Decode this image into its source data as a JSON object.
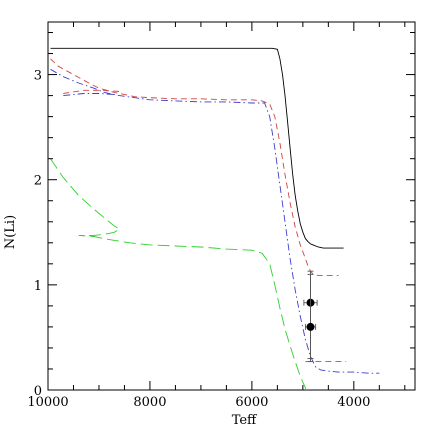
{
  "chart_data": {
    "type": "line",
    "title": "",
    "xlabel": "Teff",
    "ylabel": "N(Li)",
    "x_reversed": true,
    "xlim": [
      10000,
      2800
    ],
    "ylim": [
      0,
      3.5
    ],
    "x_major_ticks": [
      10000,
      8000,
      6000,
      4000
    ],
    "x_tick_labels": [
      "10000",
      "8000",
      "6000",
      "4000"
    ],
    "y_major_ticks": [
      0,
      1,
      2,
      3
    ],
    "y_tick_labels": [
      "0",
      "1",
      "2",
      "3"
    ],
    "grid": false,
    "legend": "none",
    "series": [
      {
        "style": "solid",
        "color": "#000000",
        "points": [
          [
            9950,
            3.25
          ],
          [
            9000,
            3.25
          ],
          [
            8000,
            3.25
          ],
          [
            7000,
            3.25
          ],
          [
            6000,
            3.25
          ],
          [
            5600,
            3.25
          ],
          [
            5500,
            3.24
          ],
          [
            5450,
            3.15
          ],
          [
            5400,
            3.0
          ],
          [
            5350,
            2.8
          ],
          [
            5300,
            2.55
          ],
          [
            5250,
            2.3
          ],
          [
            5200,
            2.05
          ],
          [
            5150,
            1.85
          ],
          [
            5100,
            1.7
          ],
          [
            5050,
            1.58
          ],
          [
            5000,
            1.5
          ],
          [
            4950,
            1.44
          ],
          [
            4900,
            1.41
          ],
          [
            4850,
            1.39
          ],
          [
            4800,
            1.38
          ],
          [
            4700,
            1.36
          ],
          [
            4600,
            1.35
          ],
          [
            4500,
            1.35
          ],
          [
            4400,
            1.35
          ],
          [
            4200,
            1.35
          ]
        ]
      },
      {
        "style": "dashed",
        "color": "#d0443f",
        "points": [
          [
            9950,
            3.15
          ],
          [
            9800,
            3.08
          ],
          [
            9500,
            3.0
          ],
          [
            9200,
            2.92
          ],
          [
            9000,
            2.87
          ],
          [
            8700,
            2.83
          ],
          [
            8300,
            2.79
          ],
          [
            8000,
            2.78
          ],
          [
            7500,
            2.77
          ],
          [
            7000,
            2.77
          ],
          [
            6500,
            2.76
          ],
          [
            6000,
            2.76
          ],
          [
            5800,
            2.75
          ],
          [
            5650,
            2.72
          ],
          [
            5550,
            2.6
          ],
          [
            5450,
            2.35
          ],
          [
            5350,
            2.05
          ],
          [
            5250,
            1.78
          ],
          [
            5150,
            1.55
          ],
          [
            5050,
            1.38
          ],
          [
            4950,
            1.25
          ],
          [
            4900,
            1.18
          ],
          [
            4850,
            1.13
          ],
          [
            4800,
            1.1
          ],
          [
            4700,
            1.09
          ],
          [
            4600,
            1.09
          ],
          [
            4300,
            1.09
          ]
        ]
      },
      {
        "style": "dashed",
        "color": "#d0443f",
        "points": [
          [
            9700,
            2.82
          ],
          [
            9300,
            2.85
          ],
          [
            9000,
            2.85
          ],
          [
            8600,
            2.84
          ]
        ]
      },
      {
        "style": "dashdot",
        "color": "#3c3cd0",
        "points": [
          [
            9950,
            3.05
          ],
          [
            9700,
            2.98
          ],
          [
            9400,
            2.92
          ],
          [
            9100,
            2.87
          ],
          [
            8900,
            2.83
          ],
          [
            8600,
            2.8
          ],
          [
            8000,
            2.76
          ],
          [
            7500,
            2.75
          ],
          [
            7000,
            2.74
          ],
          [
            6500,
            2.74
          ],
          [
            6000,
            2.73
          ],
          [
            5750,
            2.73
          ],
          [
            5650,
            2.6
          ],
          [
            5550,
            2.3
          ],
          [
            5450,
            1.95
          ],
          [
            5350,
            1.6
          ],
          [
            5250,
            1.25
          ],
          [
            5150,
            0.95
          ],
          [
            5050,
            0.7
          ],
          [
            4950,
            0.48
          ],
          [
            4850,
            0.32
          ],
          [
            4750,
            0.22
          ],
          [
            4650,
            0.19
          ],
          [
            4500,
            0.18
          ],
          [
            4300,
            0.17
          ],
          [
            4000,
            0.17
          ],
          [
            3700,
            0.16
          ],
          [
            3500,
            0.16
          ]
        ]
      },
      {
        "style": "dashdot",
        "color": "#3c3cd0",
        "points": [
          [
            9700,
            2.8
          ],
          [
            9300,
            2.82
          ],
          [
            9000,
            2.82
          ],
          [
            8700,
            2.81
          ]
        ]
      },
      {
        "style": "longdash",
        "color": "#2fd02f",
        "points": [
          [
            9950,
            2.2
          ],
          [
            9700,
            2.02
          ],
          [
            9400,
            1.85
          ],
          [
            9100,
            1.72
          ],
          [
            8850,
            1.62
          ],
          [
            8700,
            1.56
          ],
          [
            8600,
            1.53
          ],
          [
            8700,
            1.5
          ],
          [
            8900,
            1.48
          ],
          [
            9100,
            1.47
          ],
          [
            9400,
            1.47
          ],
          [
            9100,
            1.46
          ],
          [
            8800,
            1.43
          ],
          [
            8400,
            1.4
          ],
          [
            8000,
            1.38
          ],
          [
            7500,
            1.37
          ],
          [
            7000,
            1.36
          ],
          [
            6500,
            1.34
          ],
          [
            6000,
            1.33
          ],
          [
            5800,
            1.3
          ],
          [
            5650,
            1.2
          ],
          [
            5550,
            1.0
          ],
          [
            5450,
            0.78
          ],
          [
            5350,
            0.58
          ],
          [
            5250,
            0.42
          ],
          [
            5150,
            0.27
          ],
          [
            5050,
            0.13
          ],
          [
            4950,
            0.02
          ],
          [
            4900,
            -0.05
          ]
        ]
      }
    ],
    "error_points": [
      {
        "x": 4850,
        "y": 0.83,
        "xerr": 130,
        "yerr_low": 0.56,
        "yerr_high": 0.3
      },
      {
        "x": 4850,
        "y": 0.6,
        "xerr": 100,
        "yerr_low": 0.3,
        "yerr_high": 0.5
      }
    ],
    "hlines": [
      {
        "y": 0.27,
        "x_from": 4950,
        "x_to": 4150,
        "style": "dashed",
        "color": "#d0443f"
      }
    ]
  }
}
